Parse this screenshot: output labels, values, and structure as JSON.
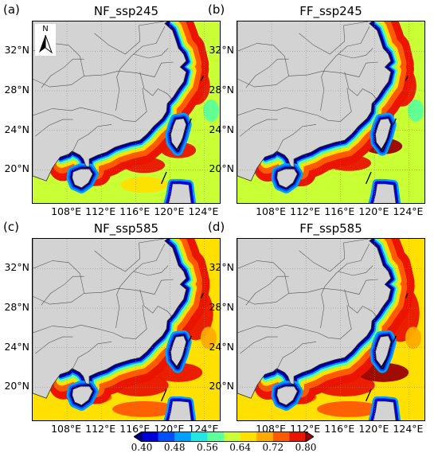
{
  "panels": [
    {
      "label": "(a)",
      "title": "NF_ssp245"
    },
    {
      "label": "(b)",
      "title": "FF_ssp245"
    },
    {
      "label": "(c)",
      "title": "NF_ssp585"
    },
    {
      "label": "(d)",
      "title": "FF_ssp585"
    }
  ],
  "lat_ticks": [
    "32°N",
    "28°N",
    "24°N",
    "20°N"
  ],
  "lon_ticks": [
    "108°E",
    "112°E",
    "116°E",
    "120°E",
    "124°E"
  ],
  "north_arrow": {
    "letter": "N",
    "icon": "north-arrow-icon"
  },
  "colorbar": {
    "ticks": [
      "0.40",
      "0.48",
      "0.56",
      "0.64",
      "0.72",
      "0.80"
    ],
    "colors": [
      "#00007f",
      "#0000d8",
      "#0050ff",
      "#00a0ff",
      "#22e6e6",
      "#5cff9a",
      "#c8ff35",
      "#ffe000",
      "#ffaa00",
      "#ff5a00",
      "#ea1400",
      "#9c0000"
    ]
  }
}
